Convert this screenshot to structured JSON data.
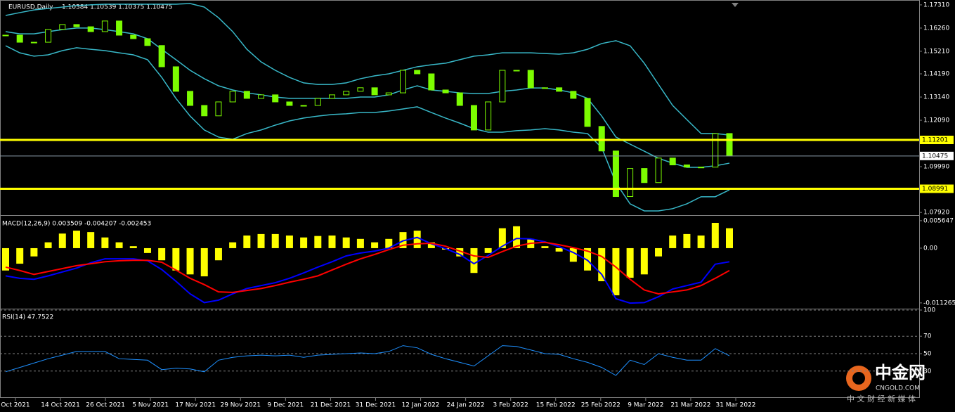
{
  "chart_data": [
    {
      "type": "candlestick",
      "title": "EURUSD,Daily",
      "subtitle": "1.10384 1.10539 1.10375 1.10475",
      "ylim": [
        1.0783,
        1.1753
      ],
      "yticks": [
        {
          "value": 1.1731,
          "label": "1.17310"
        },
        {
          "value": 1.1626,
          "label": "1.16260"
        },
        {
          "value": 1.1521,
          "label": "1.15210"
        },
        {
          "value": 1.1419,
          "label": "1.14190"
        },
        {
          "value": 1.1314,
          "label": "1.13140"
        },
        {
          "value": 1.1209,
          "label": "1.12090"
        },
        {
          "value": 1.0999,
          "label": "1.09990"
        },
        {
          "value": 1.0792,
          "label": "1.07920"
        }
      ],
      "color": "#7cfc00",
      "close": [
        1.1594,
        1.1562,
        1.1562,
        1.162,
        1.1642,
        1.1632,
        1.161,
        1.1658,
        1.1594,
        1.1578,
        1.1547,
        1.1451,
        1.134,
        1.1276,
        1.1229,
        1.1292,
        1.134,
        1.1308,
        1.1324,
        1.1292,
        1.1276,
        1.1276,
        1.1308,
        1.1324,
        1.134,
        1.1356,
        1.1324,
        1.1333,
        1.1435,
        1.1419,
        1.1346,
        1.1333,
        1.1276,
        1.1165,
        1.1292,
        1.1435,
        1.1435,
        1.1356,
        1.1356,
        1.134,
        1.1308,
        1.1181,
        1.107,
        1.0864,
        1.0991,
        1.0927,
        1.1038,
        1.1007,
        1.0997,
        1.0997,
        1.1149,
        1.1048
      ],
      "bands": [
        {
          "color": "#38b8c8",
          "values": [
            1.1683,
            1.1696,
            1.1708,
            1.1715,
            1.1721,
            1.1728,
            1.1731,
            1.1734,
            1.1734,
            1.1734,
            1.1734,
            1.1734,
            1.1734,
            1.1737,
            1.1721,
            1.1673,
            1.161,
            1.153,
            1.1473,
            1.1435,
            1.1403,
            1.1378,
            1.1371,
            1.1371,
            1.1378,
            1.1397,
            1.141,
            1.1419,
            1.1435,
            1.1451,
            1.146,
            1.1467,
            1.1483,
            1.1499,
            1.1505,
            1.1514,
            1.1514,
            1.1514,
            1.1511,
            1.1508,
            1.1514,
            1.153,
            1.1556,
            1.1569,
            1.1546,
            1.1467,
            1.1371,
            1.1276,
            1.1212,
            1.1149,
            1.1149,
            1.1142
          ]
        },
        {
          "color": "#38b8c8",
          "values": [
            1.161,
            1.16,
            1.16,
            1.161,
            1.1619,
            1.1626,
            1.1626,
            1.1619,
            1.161,
            1.16,
            1.1578,
            1.153,
            1.1483,
            1.1435,
            1.1397,
            1.1365,
            1.1346,
            1.1333,
            1.1324,
            1.1314,
            1.1308,
            1.1308,
            1.1308,
            1.1308,
            1.1308,
            1.1314,
            1.1314,
            1.1324,
            1.1346,
            1.1365,
            1.1346,
            1.134,
            1.1333,
            1.133,
            1.133,
            1.134,
            1.1346,
            1.1355,
            1.1355,
            1.1346,
            1.1333,
            1.1308,
            1.1228,
            1.1133,
            1.1101,
            1.1069,
            1.1037,
            1.1015,
            1.0996,
            1.0996,
            1.1003,
            1.1015
          ]
        },
        {
          "color": "#38b8c8",
          "values": [
            1.1546,
            1.1514,
            1.1499,
            1.1505,
            1.1524,
            1.1537,
            1.153,
            1.1524,
            1.1514,
            1.1505,
            1.1483,
            1.1403,
            1.1308,
            1.1228,
            1.1165,
            1.1133,
            1.1123,
            1.1149,
            1.1165,
            1.1187,
            1.1206,
            1.1219,
            1.1228,
            1.1235,
            1.1238,
            1.1244,
            1.1244,
            1.1251,
            1.126,
            1.127,
            1.1244,
            1.1219,
            1.1196,
            1.1171,
            1.1155,
            1.1155,
            1.1162,
            1.1165,
            1.1171,
            1.1165,
            1.1155,
            1.1149,
            1.1085,
            1.0926,
            1.0831,
            1.0799,
            1.0799,
            1.0809,
            1.0831,
            1.0863,
            1.0863,
            1.0894
          ]
        }
      ],
      "hlines": [
        {
          "value": 1.11201,
          "color": "#ffff00"
        },
        {
          "value": 1.10475,
          "color": "#8a9aa8"
        },
        {
          "value": 1.08991,
          "color": "#ffff00"
        }
      ]
    },
    {
      "type": "macd",
      "title": "MACD(12,26,9) 0.003509 -0.004207 -0.002453",
      "ylim": [
        -0.0123,
        0.0065
      ],
      "yticks": [
        0.005647,
        {
          "value": 0,
          "label": "0.00"
        },
        -0.011265
      ],
      "series": [
        {
          "color": "#ffff00",
          "style": "bar",
          "values": [
            -0.0046,
            -0.0032,
            -0.0017,
            0.0012,
            0.003,
            0.0036,
            0.0033,
            0.0022,
            0.0012,
            0.0004,
            -0.001,
            -0.0025,
            -0.0046,
            -0.0054,
            -0.0058,
            -0.0025,
            0.0012,
            0.0026,
            0.0029,
            0.0029,
            0.0026,
            0.0022,
            0.0025,
            0.0026,
            0.0022,
            0.0019,
            0.0012,
            0.0019,
            0.0033,
            0.0036,
            0.0012,
            -0.0003,
            -0.0017,
            -0.0051,
            -0.001,
            0.0041,
            0.0045,
            0.0019,
            0.0004,
            -0.0007,
            -0.0028,
            -0.0046,
            -0.0068,
            -0.0097,
            -0.0061,
            -0.0054,
            -0.0017,
            0.0026,
            0.0029,
            0.0026,
            0.0052,
            0.0041
          ]
        },
        {
          "color": "#0000ff",
          "values": [
            -0.0057,
            -0.0062,
            -0.0064,
            -0.0057,
            -0.0049,
            -0.0041,
            -0.003,
            -0.0022,
            -0.0022,
            -0.0022,
            -0.0026,
            -0.0044,
            -0.0068,
            -0.0094,
            -0.0112,
            -0.0107,
            -0.0094,
            -0.0083,
            -0.0077,
            -0.0071,
            -0.0062,
            -0.0051,
            -0.0039,
            -0.0028,
            -0.0016,
            -0.001,
            -0.0006,
            0,
            0.0015,
            0.0022,
            0.0009,
            -0.0001,
            -0.0013,
            -0.0032,
            -0.0015,
            0.0004,
            0.002,
            0.0019,
            0.0013,
            0.0003,
            -0.0009,
            -0.0025,
            -0.0054,
            -0.0104,
            -0.0113,
            -0.0112,
            -0.01,
            -0.0084,
            -0.0077,
            -0.007,
            -0.0033,
            -0.0028
          ]
        },
        {
          "color": "#ff0000",
          "values": [
            -0.0039,
            -0.0046,
            -0.0054,
            -0.0048,
            -0.0042,
            -0.0036,
            -0.0032,
            -0.0028,
            -0.0026,
            -0.0025,
            -0.0025,
            -0.0029,
            -0.0045,
            -0.0062,
            -0.0075,
            -0.009,
            -0.0091,
            -0.0087,
            -0.0083,
            -0.0077,
            -0.007,
            -0.0064,
            -0.0057,
            -0.0045,
            -0.0033,
            -0.0022,
            -0.0013,
            -0.0003,
            0.0006,
            0.0009,
            0.001,
            0.0004,
            -0.0006,
            -0.0016,
            -0.0019,
            -0.0007,
            0.0004,
            0.001,
            0.0012,
            0.0007,
            0.0001,
            -0.0006,
            -0.0017,
            -0.0039,
            -0.0064,
            -0.0086,
            -0.0094,
            -0.009,
            -0.0086,
            -0.0077,
            -0.0062,
            -0.0046
          ]
        }
      ]
    },
    {
      "type": "line",
      "title": "RSI(14) 47.7522",
      "ylim": [
        0,
        100
      ],
      "yticks": [
        100,
        70,
        50,
        30
      ],
      "color": "#1e90ff",
      "values": [
        29.2,
        34.2,
        39.2,
        44.2,
        48.3,
        52.5,
        52.5,
        52.5,
        44.2,
        43.3,
        42.5,
        31.7,
        33.3,
        32.5,
        29.2,
        42.5,
        45.8,
        47.5,
        48.3,
        47.5,
        48.3,
        45.8,
        48.3,
        49.2,
        50.0,
        50.8,
        50.0,
        52.5,
        59.2,
        56.7,
        49.2,
        44.2,
        40.0,
        35.8,
        47.5,
        59.2,
        58.3,
        54.2,
        50.0,
        49.2,
        44.2,
        40.0,
        34.2,
        25.0,
        42.5,
        37.5,
        50.0,
        45.8,
        42.5,
        42.5,
        55.8,
        47.5
      ],
      "x_labels": [
        "Oct 2021",
        "14 Oct 2021",
        "26 Oct 2021",
        "5 Nov 2021",
        "17 Nov 2021",
        "29 Nov 2021",
        "9 Dec 2021",
        "21 Dec 2021",
        "31 Dec 2021",
        "12 Jan 2022",
        "24 Jan 2022",
        "3 Feb 2022",
        "15 Feb 2022",
        "25 Feb 2022",
        "9 Mar 2022",
        "21 Mar 2022",
        "31 Mar 2022"
      ]
    }
  ],
  "watermark": {
    "brand": "中金网",
    "site": "CNGOLD.COM",
    "slogan": "中 文 财 经 新 媒 体"
  }
}
